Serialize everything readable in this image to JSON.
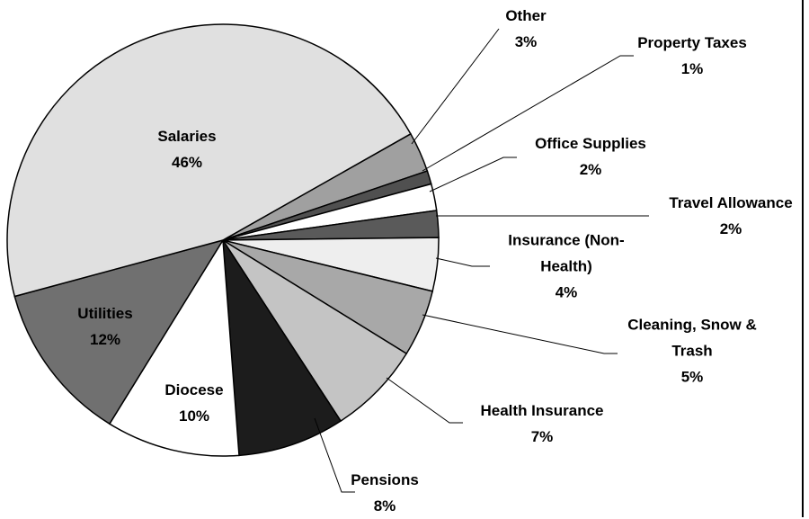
{
  "chart_data": {
    "type": "pie",
    "categories": [
      "Other",
      "Property Taxes",
      "Office Supplies",
      "Travel Allowance",
      "Insurance (Non-Health)",
      "Cleaning, Snow & Trash",
      "Health Insurance",
      "Pensions",
      "Diocese",
      "Utilities",
      "Salaries"
    ],
    "values": [
      3,
      1,
      2,
      2,
      4,
      5,
      7,
      8,
      10,
      12,
      46
    ],
    "value_labels": [
      "3%",
      "1%",
      "2%",
      "2%",
      "4%",
      "5%",
      "7%",
      "8%",
      "10%",
      "12%",
      "46%"
    ],
    "colors": [
      "#a0a0a0",
      "#505050",
      "#ffffff",
      "#5a5a5a",
      "#eeeeee",
      "#a8a8a8",
      "#c4c4c4",
      "#1c1c1c",
      "#ffffff",
      "#707070",
      "#e0e0e0"
    ]
  }
}
